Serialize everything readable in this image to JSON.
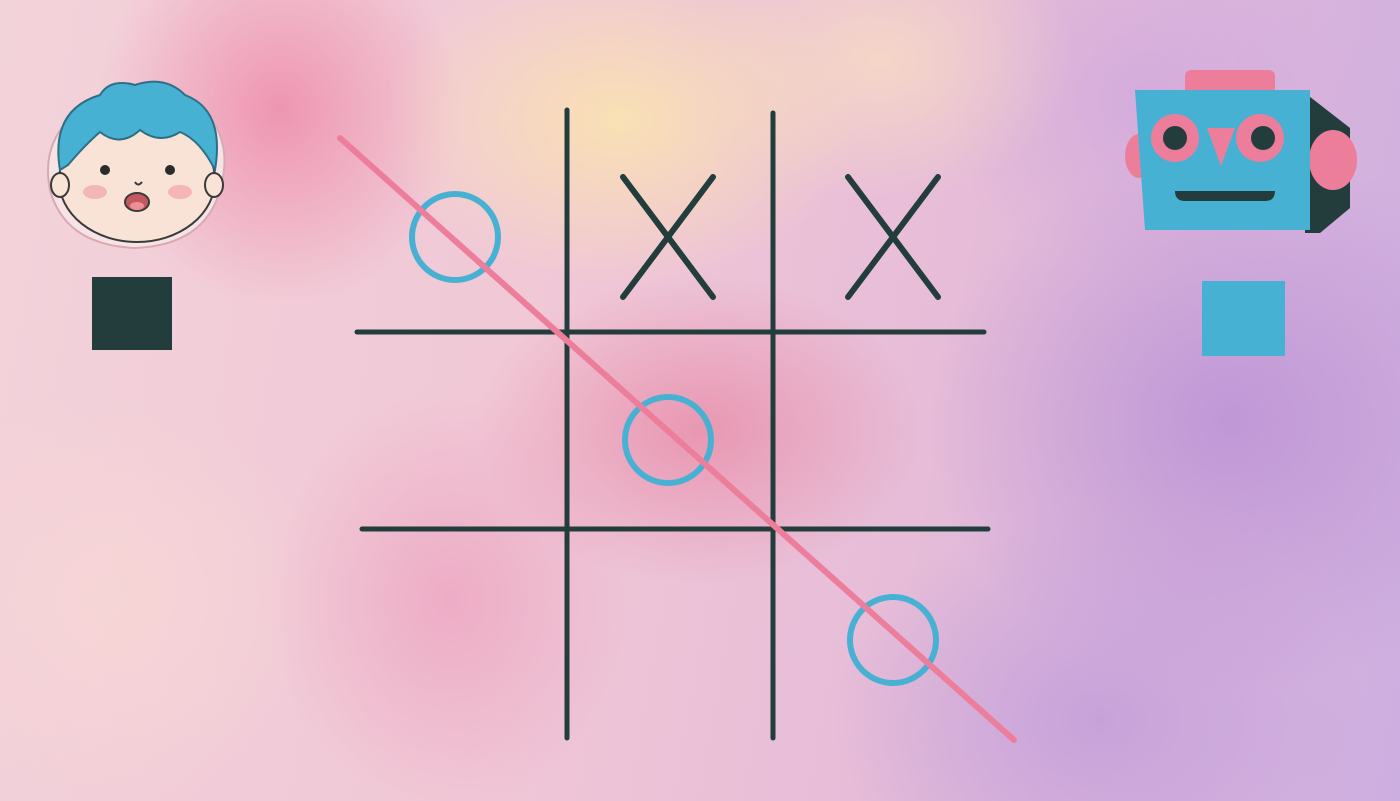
{
  "game": "tic-tac-toe",
  "colors": {
    "background": "#f2cfd9",
    "grid": "#223d3b",
    "x_mark": "#223d3b",
    "o_mark": "#47b1d3",
    "win_line": "#ec7e9c",
    "player_marker": "#223d3b",
    "opponent_marker": "#47b1d3"
  },
  "players": [
    {
      "role": "human",
      "icon": "boy-face-icon",
      "marker_color": "#223d3b"
    },
    {
      "role": "robot",
      "icon": "robot-head-icon",
      "marker_color": "#47b1d3"
    }
  ],
  "board": [
    [
      "O",
      "X",
      "X"
    ],
    [
      "",
      "O",
      ""
    ],
    [
      "",
      "",
      "O"
    ]
  ],
  "winning_line": {
    "from_cell": [
      0,
      0
    ],
    "to_cell": [
      2,
      2
    ],
    "type": "diagonal"
  }
}
